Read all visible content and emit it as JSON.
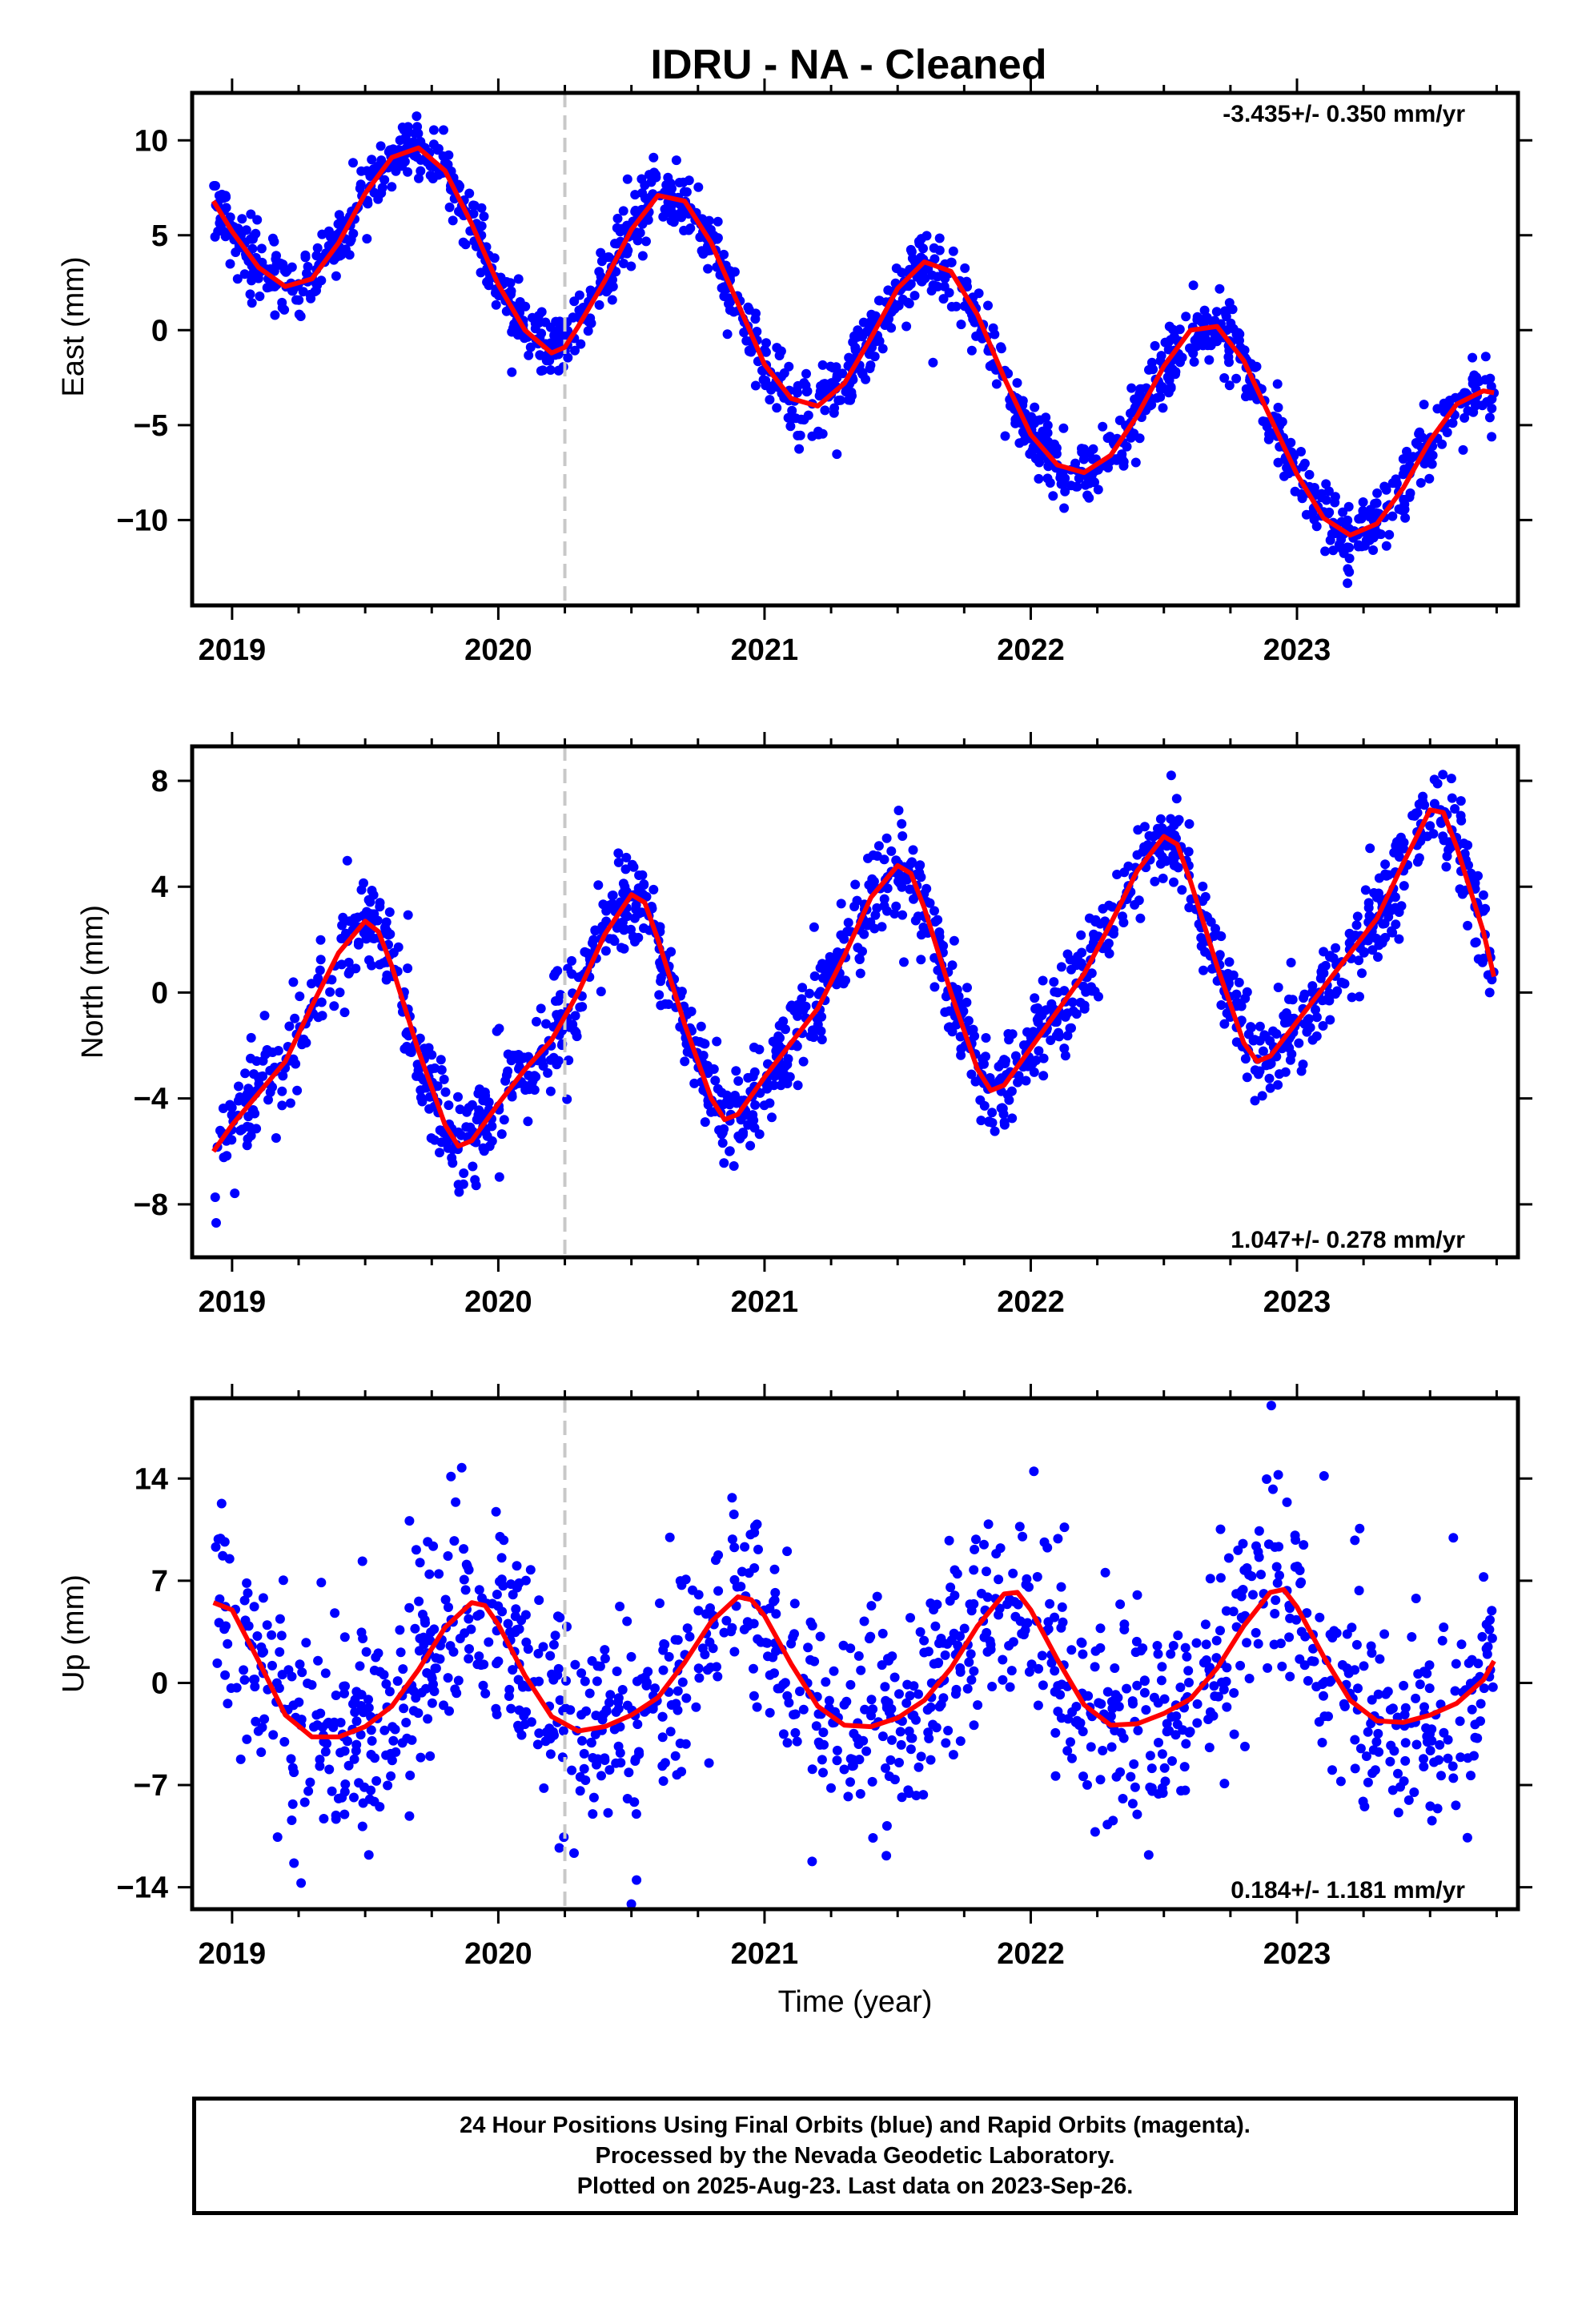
{
  "title": "IDRU  - NA - Cleaned",
  "xlabel": "Time (year)",
  "footer": {
    "line1": "24 Hour Positions Using Final Orbits (blue) and Rapid Orbits (magenta).",
    "line2": "Processed by the Nevada Geodetic Laboratory.",
    "line3": "Plotted on 2025-Aug-23. Last data on 2023-Sep-26."
  },
  "colors": {
    "points": "#0000ff",
    "model": "#ff0000",
    "break_line": "#c8c8c8"
  },
  "chart_data": [
    {
      "type": "scatter",
      "name": "east",
      "ylabel": "East (mm)",
      "rate_text": "-3.435+/- 0.350 mm/yr",
      "xlim": [
        2018.85,
        2023.83
      ],
      "ylim": [
        -14.5,
        12.5
      ],
      "xticks": [
        2019,
        2020,
        2021,
        2022,
        2023
      ],
      "yticks": [
        10,
        5,
        0,
        -5,
        -10
      ],
      "ytick_labels": [
        "10",
        "5",
        "0",
        "−5",
        "−10"
      ],
      "equipment_change_year": 2020.25,
      "model": {
        "x": [
          2018.93,
          2019.0,
          2019.1,
          2019.2,
          2019.3,
          2019.4,
          2019.5,
          2019.6,
          2019.7,
          2019.8,
          2019.9,
          2020.0,
          2020.1,
          2020.2,
          2020.25,
          2020.3,
          2020.4,
          2020.5,
          2020.6,
          2020.7,
          2020.8,
          2020.9,
          2021.0,
          2021.1,
          2021.2,
          2021.3,
          2021.4,
          2021.5,
          2021.6,
          2021.7,
          2021.8,
          2021.9,
          2022.0,
          2022.1,
          2022.2,
          2022.3,
          2022.4,
          2022.5,
          2022.6,
          2022.7,
          2022.8,
          2022.9,
          2023.0,
          2023.1,
          2023.2,
          2023.3,
          2023.4,
          2023.5,
          2023.6,
          2023.7,
          2023.74
        ],
        "y": [
          6.8,
          5.2,
          3.3,
          2.3,
          2.7,
          4.6,
          7.2,
          9.1,
          9.6,
          8.4,
          5.6,
          2.4,
          0.0,
          -1.2,
          -0.9,
          0.2,
          2.6,
          5.3,
          7.1,
          6.8,
          4.6,
          1.4,
          -1.8,
          -3.6,
          -4.0,
          -2.8,
          -0.4,
          2.2,
          3.6,
          3.1,
          0.8,
          -2.5,
          -5.5,
          -7.1,
          -7.5,
          -6.6,
          -4.5,
          -1.9,
          0.0,
          0.2,
          -1.6,
          -4.6,
          -7.6,
          -9.9,
          -10.8,
          -10.2,
          -8.3,
          -5.8,
          -3.9,
          -3.2,
          -3.3
        ]
      }
    },
    {
      "type": "scatter",
      "name": "north",
      "ylabel": "North (mm)",
      "rate_text": "1.047+/- 0.278 mm/yr",
      "xlim": [
        2018.85,
        2023.83
      ],
      "ylim": [
        -10,
        9.3
      ],
      "xticks": [
        2019,
        2020,
        2021,
        2022,
        2023
      ],
      "yticks": [
        8,
        4,
        0,
        -4,
        -8
      ],
      "ytick_labels": [
        "8",
        "4",
        "0",
        "−4",
        "−8"
      ],
      "equipment_change_year": 2020.25,
      "model": {
        "x": [
          2018.93,
          2019.0,
          2019.1,
          2019.2,
          2019.3,
          2019.4,
          2019.5,
          2019.55,
          2019.6,
          2019.7,
          2019.8,
          2019.85,
          2019.9,
          2020.0,
          2020.1,
          2020.2,
          2020.3,
          2020.4,
          2020.5,
          2020.55,
          2020.6,
          2020.7,
          2020.8,
          2020.85,
          2020.9,
          2021.0,
          2021.1,
          2021.2,
          2021.3,
          2021.4,
          2021.5,
          2021.55,
          2021.6,
          2021.7,
          2021.8,
          2021.85,
          2021.9,
          2022.0,
          2022.1,
          2022.2,
          2022.3,
          2022.4,
          2022.5,
          2022.55,
          2022.6,
          2022.7,
          2022.8,
          2022.85,
          2022.9,
          2023.0,
          2023.1,
          2023.2,
          2023.3,
          2023.4,
          2023.5,
          2023.55,
          2023.6,
          2023.7,
          2023.74
        ],
        "y": [
          -6.0,
          -5.0,
          -3.8,
          -2.6,
          -0.5,
          1.5,
          2.7,
          2.3,
          1.0,
          -2.2,
          -5.0,
          -5.8,
          -5.6,
          -4.2,
          -2.9,
          -1.8,
          0.0,
          2.2,
          3.7,
          3.4,
          2.0,
          -1.2,
          -4.0,
          -4.8,
          -4.6,
          -3.2,
          -1.9,
          -0.6,
          1.4,
          3.6,
          4.8,
          4.5,
          3.2,
          0.0,
          -2.9,
          -3.7,
          -3.5,
          -2.1,
          -0.7,
          0.7,
          2.6,
          4.6,
          5.9,
          5.6,
          4.2,
          1.0,
          -1.9,
          -2.6,
          -2.4,
          -1.1,
          0.2,
          1.5,
          2.8,
          4.9,
          6.9,
          6.8,
          5.5,
          2.3,
          0.6
        ]
      }
    },
    {
      "type": "scatter",
      "name": "up",
      "ylabel": "Up (mm)",
      "rate_text": "0.184+/- 1.181 mm/yr",
      "xlim": [
        2018.85,
        2023.83
      ],
      "ylim": [
        -15.5,
        19.5
      ],
      "xticks": [
        2019,
        2020,
        2021,
        2022,
        2023
      ],
      "yticks": [
        14,
        7,
        0,
        -7,
        -14
      ],
      "ytick_labels": [
        "14",
        "7",
        "0",
        "−7",
        "−14"
      ],
      "equipment_change_year": 2020.25,
      "model": {
        "x": [
          2018.93,
          2019.0,
          2019.1,
          2019.2,
          2019.3,
          2019.4,
          2019.5,
          2019.6,
          2019.7,
          2019.8,
          2019.9,
          2019.95,
          2020.0,
          2020.1,
          2020.2,
          2020.3,
          2020.4,
          2020.5,
          2020.6,
          2020.7,
          2020.8,
          2020.9,
          2020.95,
          2021.0,
          2021.1,
          2021.2,
          2021.3,
          2021.4,
          2021.5,
          2021.6,
          2021.7,
          2021.8,
          2021.9,
          2021.95,
          2022.0,
          2022.1,
          2022.2,
          2022.3,
          2022.4,
          2022.5,
          2022.6,
          2022.7,
          2022.8,
          2022.9,
          2022.95,
          2023.0,
          2023.1,
          2023.2,
          2023.3,
          2023.4,
          2023.5,
          2023.6,
          2023.7,
          2023.74
        ],
        "y": [
          5.5,
          5.0,
          1.5,
          -2.2,
          -3.7,
          -3.7,
          -3.0,
          -1.6,
          0.9,
          3.8,
          5.5,
          5.3,
          4.0,
          0.5,
          -2.3,
          -3.3,
          -3.0,
          -2.2,
          -1.0,
          1.4,
          4.2,
          5.9,
          5.7,
          4.6,
          1.3,
          -1.6,
          -2.9,
          -3.0,
          -2.4,
          -1.2,
          1.0,
          3.9,
          6.1,
          6.2,
          5.0,
          1.6,
          -1.5,
          -2.9,
          -2.8,
          -2.1,
          -1.1,
          1.0,
          3.9,
          6.2,
          6.4,
          5.2,
          1.8,
          -1.2,
          -2.6,
          -2.7,
          -2.2,
          -1.4,
          0.2,
          1.5
        ]
      }
    }
  ]
}
